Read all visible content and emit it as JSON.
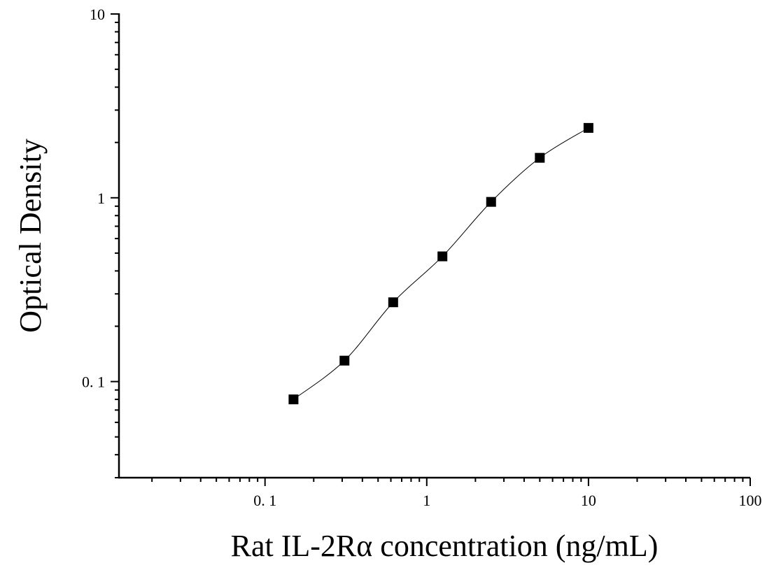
{
  "chart_data": {
    "type": "scatter",
    "title": "",
    "xlabel": "Rat IL-2Rα concentration (ng/mL)",
    "ylabel": "Optical Density",
    "x_scale": "log",
    "y_scale": "log",
    "xlim": [
      0.0125,
      100
    ],
    "ylim": [
      0.03,
      10
    ],
    "x_ticks": [
      {
        "value": 0.1,
        "label": "0. 1"
      },
      {
        "value": 1,
        "label": "1"
      },
      {
        "value": 10,
        "label": "10"
      },
      {
        "value": 100,
        "label": "100"
      }
    ],
    "y_ticks": [
      {
        "value": 0.1,
        "label": "0. 1"
      },
      {
        "value": 1,
        "label": "1"
      },
      {
        "value": 10,
        "label": "10"
      }
    ],
    "series": [
      {
        "x": [
          0.15,
          0.31,
          0.62,
          1.25,
          2.5,
          5,
          10
        ],
        "y": [
          0.08,
          0.13,
          0.27,
          0.48,
          0.95,
          1.65,
          2.4
        ],
        "marker": "square",
        "color": "#000000",
        "fit_curve": true
      }
    ],
    "grid": false,
    "legend": "none"
  }
}
